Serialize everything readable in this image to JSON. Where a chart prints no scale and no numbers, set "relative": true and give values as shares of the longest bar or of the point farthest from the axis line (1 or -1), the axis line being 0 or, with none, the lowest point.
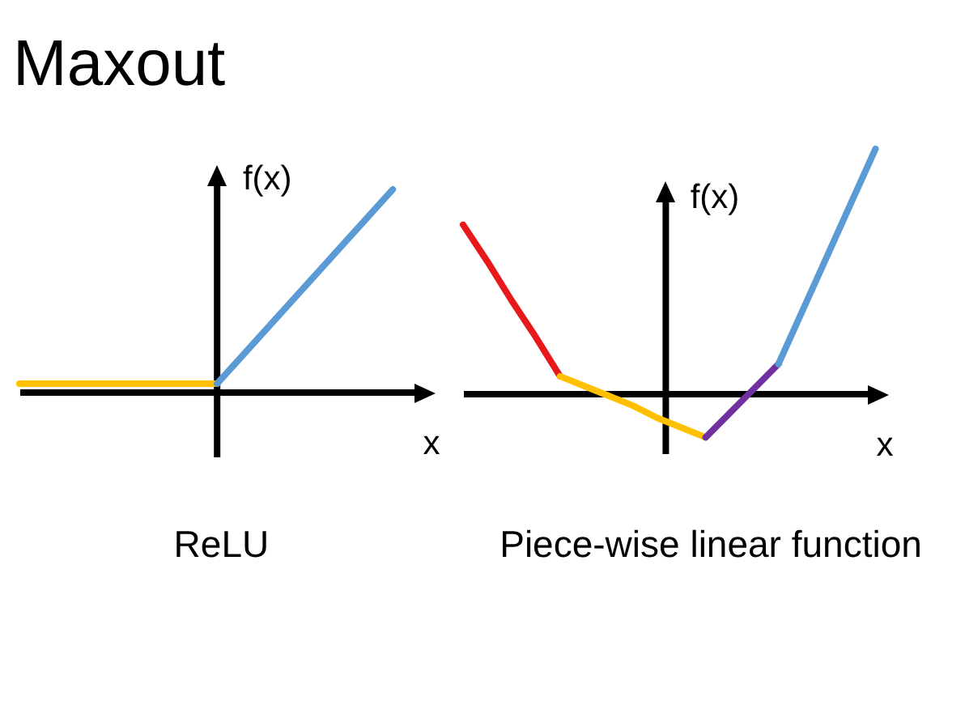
{
  "chart_data": [
    {
      "type": "line",
      "title": "Maxout",
      "xlabel": "x",
      "ylabel": "f(x)",
      "annotations": [
        "ReLU"
      ],
      "relative": true,
      "categories": [
        null,
        null,
        null,
        null,
        null,
        null,
        null,
        null,
        null,
        null,
        null,
        null,
        null,
        null,
        null,
        null,
        null,
        null
      ],
      "series": [
        {
          "color": "#ffc000",
          "values": [
            0.04,
            0.04,
            0.04,
            0.04,
            0.04,
            0.04,
            0.04,
            0.04,
            0.04,
            0.04,
            null,
            null,
            null,
            null,
            null,
            null,
            null,
            null
          ]
        },
        {
          "color": "#5b9bd5",
          "values": [
            null,
            null,
            null,
            null,
            null,
            null,
            null,
            null,
            null,
            0.04,
            0.16,
            0.28,
            0.4,
            0.52,
            0.64,
            0.76,
            0.88,
            1
          ]
        }
      ]
    },
    {
      "type": "line",
      "xlabel": "x",
      "ylabel": "f(x)",
      "annotations": [
        "Piece-wise linear function"
      ],
      "relative": true,
      "categories": [
        null,
        null,
        null,
        null,
        null,
        null,
        null,
        null,
        null,
        null,
        null,
        null,
        null,
        null,
        null,
        null,
        null,
        null
      ],
      "series": [
        {
          "color": "#e8191b",
          "values": [
            0.69,
            0.54,
            0.38,
            0.23,
            0.07,
            null,
            null,
            null,
            null,
            null,
            null,
            null,
            null,
            null,
            null,
            null,
            null,
            null
          ]
        },
        {
          "color": "#ffc000",
          "values": [
            null,
            null,
            null,
            null,
            0.07,
            0.03,
            -0.01,
            -0.05,
            -0.1,
            -0.14,
            -0.18,
            null,
            null,
            null,
            null,
            null,
            null,
            null
          ]
        },
        {
          "color": "#7030a0",
          "values": [
            null,
            null,
            null,
            null,
            null,
            null,
            null,
            null,
            null,
            null,
            -0.18,
            -0.08,
            0.02,
            0.12,
            null,
            null,
            null,
            null
          ]
        },
        {
          "color": "#5b9bd5",
          "values": [
            null,
            null,
            null,
            null,
            null,
            null,
            null,
            null,
            null,
            null,
            null,
            null,
            null,
            0.12,
            0.34,
            0.56,
            0.78,
            1
          ]
        }
      ]
    }
  ]
}
